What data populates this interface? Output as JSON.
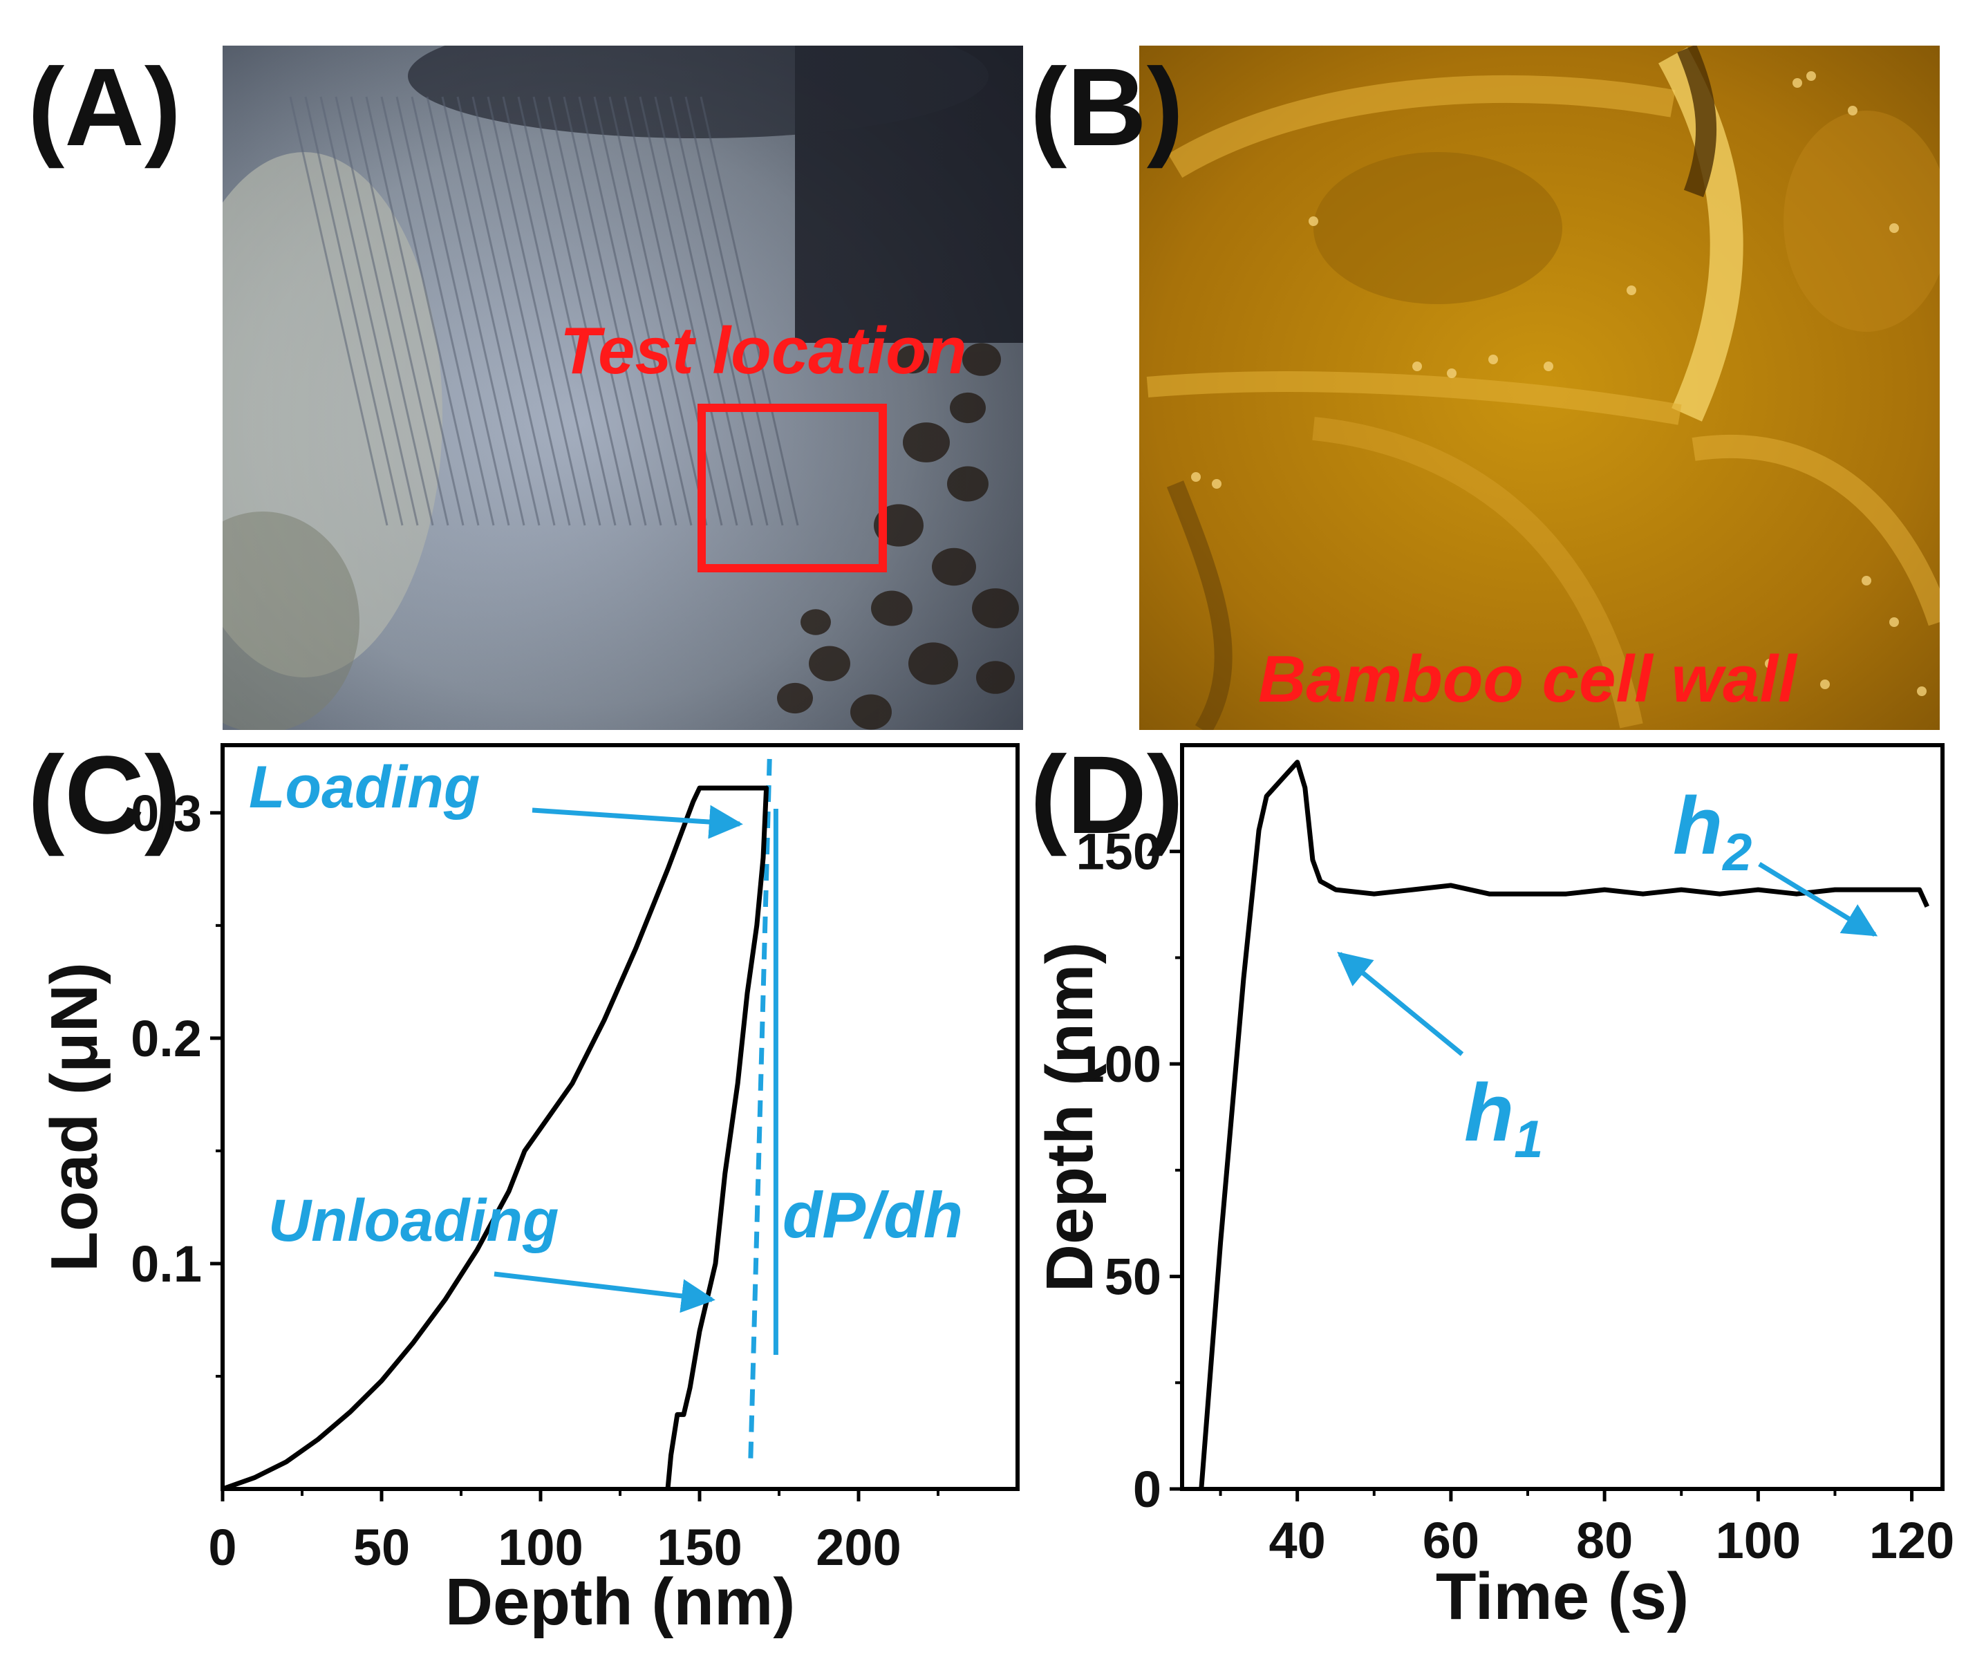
{
  "panels": {
    "a": {
      "label": "(A)",
      "annotation": "Test location"
    },
    "b": {
      "label": "(B)",
      "annotation": "Bamboo cell wall"
    },
    "c": {
      "label": "(C)",
      "loading": "Loading",
      "unloading": "Unloading",
      "slope": "dP/dh"
    },
    "d": {
      "label": "(D)",
      "h1_base": "h",
      "h1_sub": "1",
      "h2_base": "h",
      "h2_sub": "2"
    }
  },
  "colors": {
    "annotation_red": "#ff1a1a",
    "annotation_blue": "#1fa3e0",
    "curve": "#000000"
  },
  "chart_data": [
    {
      "type": "line",
      "panel": "C",
      "xlabel": "Depth (nm)",
      "ylabel": "Load (μN)",
      "xlim": [
        0,
        250
      ],
      "ylim": [
        0,
        0.33
      ],
      "xticks": [
        0,
        50,
        100,
        150,
        200
      ],
      "yticks": [
        0.1,
        0.2,
        0.3
      ],
      "series": [
        {
          "x": [
            0,
            10,
            20,
            30,
            40,
            50,
            60,
            70,
            80,
            90,
            95,
            100,
            110,
            120,
            130,
            140,
            148,
            150,
            160,
            168,
            171,
            170,
            168,
            165,
            162,
            158,
            155,
            150,
            147,
            145,
            143,
            141,
            140
          ],
          "y": [
            0,
            0.005,
            0.012,
            0.022,
            0.034,
            0.048,
            0.065,
            0.084,
            0.106,
            0.132,
            0.15,
            0.16,
            0.18,
            0.208,
            0.24,
            0.275,
            0.305,
            0.311,
            0.311,
            0.311,
            0.311,
            0.28,
            0.25,
            0.22,
            0.18,
            0.14,
            0.1,
            0.07,
            0.045,
            0.033,
            0.033,
            0.015,
            0
          ]
        }
      ],
      "reference_lines": {
        "dashed_x": [
          166,
          172
        ],
        "solid_x": 174
      }
    },
    {
      "type": "line",
      "panel": "D",
      "xlabel": "Time (s)",
      "ylabel": "Depth (nm)",
      "xlim": [
        25,
        124
      ],
      "ylim": [
        0,
        175
      ],
      "xticks": [
        40,
        60,
        80,
        100,
        120
      ],
      "yticks": [
        0,
        50,
        100,
        150
      ],
      "series": [
        {
          "x": [
            27.5,
            30,
            33,
            35,
            36,
            38,
            40,
            41,
            42,
            43,
            45,
            50,
            55,
            60,
            65,
            70,
            75,
            80,
            85,
            90,
            95,
            100,
            105,
            110,
            115,
            120,
            121,
            122
          ],
          "y": [
            0,
            58,
            120,
            155,
            163,
            167,
            171,
            165,
            148,
            143,
            141,
            140,
            141,
            142,
            140,
            140,
            140,
            141,
            140,
            141,
            140,
            141,
            140,
            141,
            141,
            141,
            141,
            137
          ]
        }
      ]
    }
  ]
}
